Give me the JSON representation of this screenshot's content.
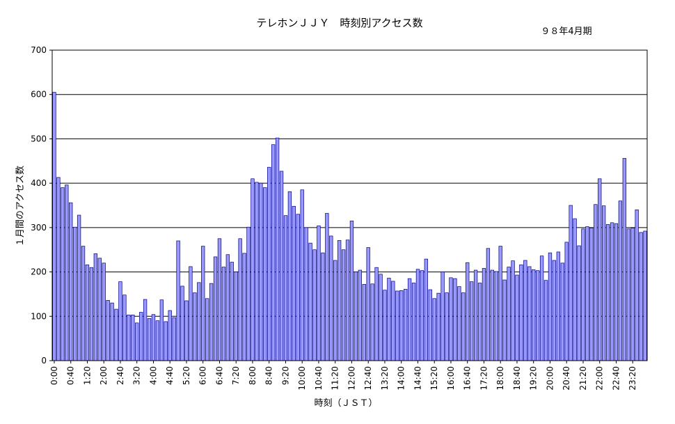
{
  "chart_data": {
    "type": "bar",
    "title": "テレホンＪＪＹ　時刻別アクセス数",
    "subtitle": "９８年4月期",
    "xlabel": "時刻（ＪＳＴ）",
    "ylabel": "１月間のアクセス数",
    "ylim": [
      0,
      700
    ],
    "yticks": [
      0,
      100,
      200,
      300,
      400,
      500,
      600,
      700
    ],
    "grid": true,
    "colors": {
      "bar_fill": "#9999ff",
      "bar_stroke": "#000080"
    },
    "slot_minutes": 10,
    "xtick_labels": [
      "0:00",
      "0:40",
      "1:20",
      "2:00",
      "2:40",
      "3:20",
      "4:00",
      "4:40",
      "5:20",
      "6:00",
      "6:40",
      "7:20",
      "8:00",
      "8:40",
      "9:20",
      "10:00",
      "10:40",
      "11:20",
      "12:00",
      "12:40",
      "13:20",
      "14:00",
      "14:40",
      "15:20",
      "16:00",
      "16:40",
      "17:20",
      "18:00",
      "18:40",
      "19:20",
      "20:00",
      "20:40",
      "21:20",
      "22:00",
      "22:40",
      "23:20"
    ],
    "values": [
      605,
      413,
      390,
      396,
      356,
      301,
      328,
      258,
      216,
      210,
      241,
      231,
      220,
      136,
      130,
      116,
      178,
      148,
      103,
      103,
      85,
      109,
      138,
      95,
      104,
      90,
      137,
      88,
      113,
      97,
      270,
      168,
      135,
      212,
      153,
      176,
      258,
      140,
      174,
      234,
      275,
      211,
      239,
      222,
      200,
      275,
      242,
      301,
      410,
      402,
      400,
      390,
      436,
      487,
      502,
      427,
      327,
      381,
      348,
      330,
      385,
      300,
      265,
      250,
      304,
      243,
      332,
      281,
      226,
      271,
      250,
      272,
      315,
      200,
      204,
      172,
      255,
      173,
      210,
      195,
      159,
      186,
      179,
      157,
      158,
      161,
      185,
      175,
      206,
      203,
      229,
      160,
      140,
      152,
      200,
      153,
      187,
      185,
      167,
      153,
      221,
      178,
      204,
      175,
      208,
      253,
      204,
      201,
      258,
      182,
      211,
      225,
      193,
      216,
      226,
      212,
      205,
      203,
      236,
      181,
      243,
      226,
      245,
      220,
      267,
      350,
      320,
      259,
      297,
      302,
      299,
      352,
      410,
      349,
      307,
      311,
      309,
      360,
      456,
      297,
      299,
      340,
      289,
      292
    ]
  }
}
